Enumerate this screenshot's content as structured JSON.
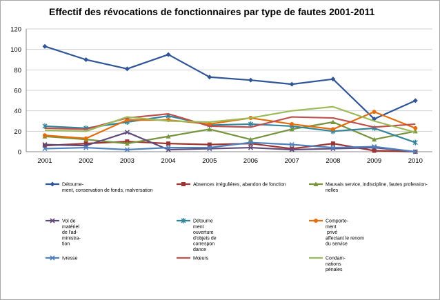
{
  "chart_data": {
    "type": "line",
    "title": "Effectif des révocations de fonctionnaires par type de fautes 2001-2011",
    "xlabel": "",
    "ylabel": "",
    "x": [
      "2001",
      "2002",
      "2003",
      "2004",
      "2005",
      "2006",
      "2007",
      "2008",
      "2009",
      "2010"
    ],
    "ylim": [
      0,
      120
    ],
    "yticks": [
      "0",
      "20",
      "40",
      "60",
      "80",
      "100",
      "120"
    ],
    "grid": true,
    "legend_position": "bottom",
    "series": [
      {
        "name": "Détourne-\nment, conservation de fonds, malversation",
        "color": "#2F5597",
        "marker": "diamond",
        "values": [
          103,
          90,
          81,
          95,
          73,
          70,
          66,
          71,
          32,
          50
        ]
      },
      {
        "name": "Absences irrégulières, abandon de fonction",
        "color": "#9E3431",
        "marker": "square",
        "values": [
          6,
          8,
          10,
          8,
          7,
          8,
          3,
          8,
          1,
          0
        ]
      },
      {
        "name": "Mauvais service, indiscipline, fautes profession-\nnelles",
        "color": "#77933C",
        "marker": "triangle",
        "values": [
          15,
          12,
          8,
          15,
          22,
          12,
          22,
          29,
          12,
          20
        ]
      },
      {
        "name": "Vol de\nmatériel\nde l'ad-\nministra-\ntion",
        "color": "#604A7B",
        "marker": "x",
        "values": [
          7,
          6,
          19,
          2,
          3,
          4,
          2,
          3,
          4,
          0
        ]
      },
      {
        "name": "Détourne\nment\nouverture\nd'objets de\ncorrespon\ndance",
        "color": "#31849B",
        "marker": "star",
        "values": [
          25,
          23,
          29,
          35,
          26,
          27,
          25,
          20,
          23,
          9
        ]
      },
      {
        "name": "Comporte-\nment\n privé\naffectant le renom\ndu service",
        "color": "#E46C0A",
        "marker": "circle",
        "values": [
          16,
          13,
          31,
          31,
          27,
          33,
          27,
          22,
          39,
          23
        ]
      },
      {
        "name": "Ivresse",
        "color": "#4F81BD",
        "marker": "x",
        "values": [
          3,
          4,
          2,
          4,
          4,
          9,
          7,
          4,
          5,
          0
        ]
      },
      {
        "name": "Mœurs",
        "color": "#C0504D",
        "marker": "none",
        "values": [
          23,
          22,
          33,
          37,
          25,
          24,
          34,
          33,
          24,
          27
        ]
      },
      {
        "name": "Condam-\nnations\npénales",
        "color": "#9BBB59",
        "marker": "none",
        "values": [
          21,
          20,
          34,
          30,
          29,
          33,
          40,
          44,
          30,
          19
        ]
      }
    ]
  }
}
